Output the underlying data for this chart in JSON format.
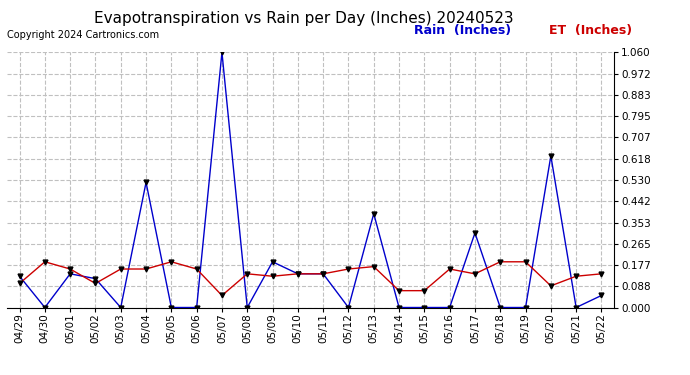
{
  "title": "Evapotranspiration vs Rain per Day (Inches) 20240523",
  "copyright": "Copyright 2024 Cartronics.com",
  "legend_rain": "Rain  (Inches)",
  "legend_et": "ET  (Inches)",
  "dates": [
    "04/29",
    "04/30",
    "05/01",
    "05/02",
    "05/03",
    "05/04",
    "05/05",
    "05/06",
    "05/07",
    "05/08",
    "05/09",
    "05/10",
    "05/11",
    "05/12",
    "05/13",
    "05/14",
    "05/15",
    "05/16",
    "05/17",
    "05/18",
    "05/19",
    "05/20",
    "05/21",
    "05/22"
  ],
  "rain": [
    0.13,
    0.0,
    0.14,
    0.12,
    0.0,
    0.52,
    0.0,
    0.0,
    1.06,
    0.0,
    0.19,
    0.14,
    0.14,
    0.0,
    0.39,
    0.0,
    0.0,
    0.0,
    0.31,
    0.0,
    0.0,
    0.63,
    0.0,
    0.05
  ],
  "et": [
    0.1,
    0.19,
    0.16,
    0.1,
    0.16,
    0.16,
    0.19,
    0.16,
    0.05,
    0.14,
    0.13,
    0.14,
    0.14,
    0.16,
    0.17,
    0.07,
    0.07,
    0.16,
    0.14,
    0.19,
    0.19,
    0.09,
    0.13,
    0.14
  ],
  "rain_color": "#0000cc",
  "et_color": "#cc0000",
  "marker_color": "#000000",
  "background_color": "#ffffff",
  "grid_color": "#c0c0c0",
  "title_color": "#000000",
  "copyright_color": "#000000",
  "legend_rain_color": "#0000cc",
  "legend_et_color": "#cc0000",
  "yticks": [
    0.0,
    0.088,
    0.177,
    0.265,
    0.353,
    0.442,
    0.53,
    0.618,
    0.707,
    0.795,
    0.883,
    0.972,
    1.06
  ],
  "ylim": [
    0.0,
    1.06
  ],
  "title_fontsize": 11,
  "copyright_fontsize": 7,
  "legend_fontsize": 9,
  "tick_fontsize": 7.5
}
